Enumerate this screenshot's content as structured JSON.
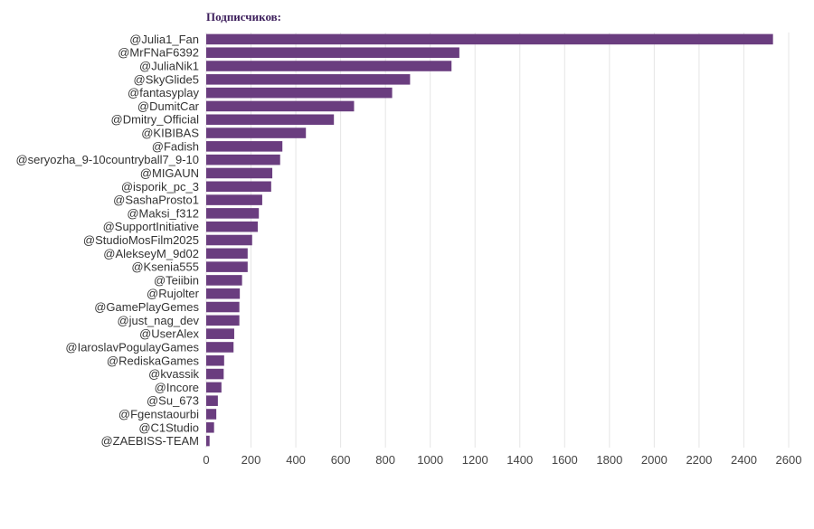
{
  "chart_data": {
    "type": "bar",
    "orientation": "horizontal",
    "title": "Подписчиков:",
    "xlabel": "",
    "ylabel": "",
    "xlim": [
      0,
      2600
    ],
    "ticks": [
      0,
      200,
      400,
      600,
      800,
      1000,
      1200,
      1400,
      1600,
      1800,
      2000,
      2200,
      2400,
      2600
    ],
    "grid": true,
    "bar_color": "#6a3d7f",
    "categories": [
      "@Julia1_Fan",
      "@MrFNaF6392",
      "@JuliaNik1",
      "@SkyGlide5",
      "@fantasyplay",
      "@DumitCar",
      "@Dmitry_Official",
      "@KIBIBAS",
      "@Fadish",
      "@seryozha_9-10countryball7_9-10",
      "@MIGAUN",
      "@isporik_pc_3",
      "@SashaProsto1",
      "@Maksi_f312",
      "@SupportInitiative",
      "@StudioMosFilm2025",
      "@AlekseyM_9d02",
      "@Ksenia555",
      "@Teiibin",
      "@Rujolter",
      "@GamePlayGemes",
      "@just_nag_dev",
      "@UserAlex",
      "@IaroslavPogulayGames",
      "@RediskaGames",
      "@kvassik",
      "@Incore",
      "@Su_673",
      "@Fgenstaourbi",
      "@C1Studio",
      "@ZAEBISS-TEAM"
    ],
    "values": [
      2530,
      1130,
      1095,
      910,
      830,
      660,
      570,
      445,
      340,
      330,
      295,
      290,
      250,
      235,
      230,
      205,
      185,
      185,
      160,
      150,
      148,
      148,
      125,
      122,
      80,
      78,
      68,
      52,
      45,
      35,
      15
    ]
  }
}
